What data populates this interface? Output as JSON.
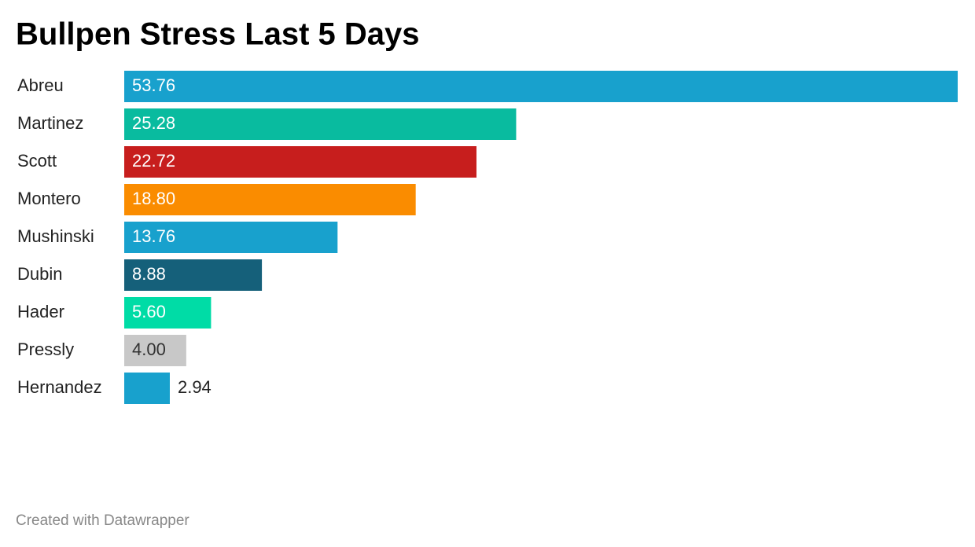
{
  "chart_data": {
    "type": "bar",
    "orientation": "horizontal",
    "title": "Bullpen Stress Last 5 Days",
    "categories": [
      "Abreu",
      "Martinez",
      "Scott",
      "Montero",
      "Mushinski",
      "Dubin",
      "Hader",
      "Pressly",
      "Hernandez"
    ],
    "values": [
      53.76,
      25.28,
      22.72,
      18.8,
      13.76,
      8.88,
      5.6,
      4,
      2.94
    ],
    "value_labels": [
      "53.76",
      "25.28",
      "22.72",
      "18.80",
      "13.76",
      "8.88",
      "5.60",
      "4.00",
      "2.94"
    ],
    "colors": [
      "#18a1cd",
      "#09bb9f",
      "#c71e1d",
      "#fa8c00",
      "#18a1cd",
      "#15607a",
      "#00dca6",
      "#c8c8c8",
      "#18a1cd"
    ],
    "credit": "Created with Datawrapper"
  }
}
